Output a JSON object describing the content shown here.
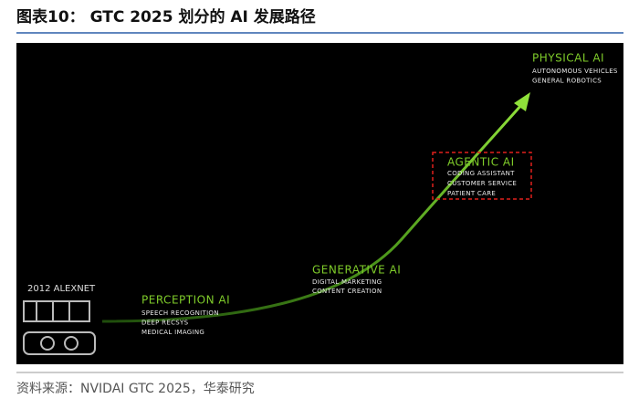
{
  "header": {
    "title": "图表10： GTC 2025 划分的 AI 发展路径"
  },
  "diagram": {
    "origin": "2012 ALEXNET",
    "stages": [
      {
        "title": "PERCEPTION AI",
        "items": [
          "SPEECH RECOGNITION",
          "DEEP RECSYS",
          "MEDICAL IMAGING"
        ]
      },
      {
        "title": "GENERATIVE AI",
        "items": [
          "DIGITAL MARKETING",
          "CONTENT CREATION"
        ]
      },
      {
        "title": "AGENTIC AI",
        "items": [
          "CODING ASSISTANT",
          "CUSTOMER SERVICE",
          "PATIENT CARE"
        ]
      },
      {
        "title": "PHYSICAL AI",
        "items": [
          "AUTONOMOUS VEHICLES",
          "GENERAL ROBOTICS"
        ]
      }
    ]
  },
  "footer": {
    "source": "资料来源：NVIDAI GTC 2025，华泰研究"
  }
}
